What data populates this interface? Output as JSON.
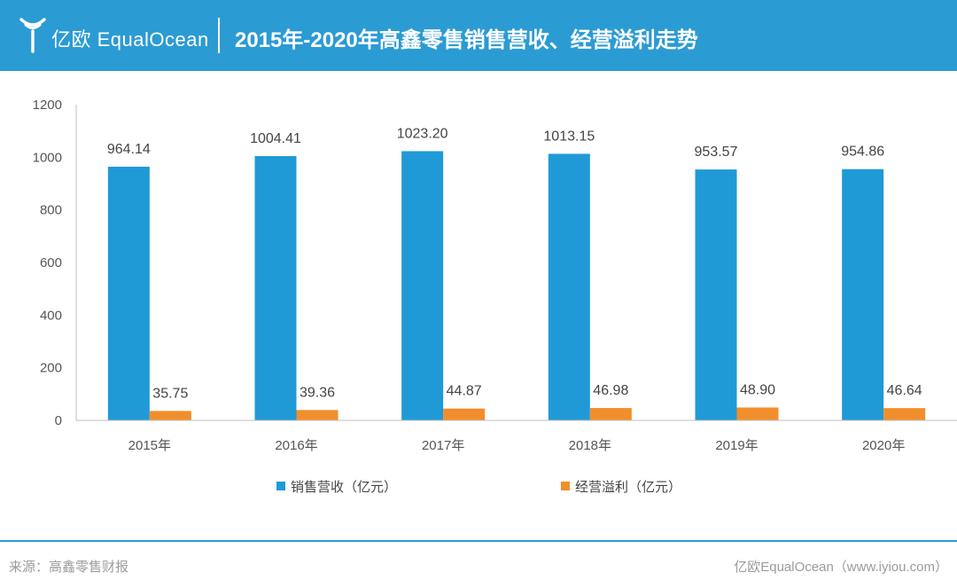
{
  "header": {
    "logo_text": "亿欧 EqualOcean",
    "title": "2015年-2020年高鑫零售销售营收、经营溢利走势",
    "logo_icon": "equalocean-logo-icon"
  },
  "colors": {
    "header_bg": "#2b9bd3",
    "series_revenue": "#1f9ad6",
    "series_profit": "#f28e2b"
  },
  "chart_data": {
    "type": "bar",
    "categories": [
      "2015年",
      "2016年",
      "2017年",
      "2018年",
      "2019年",
      "2020年"
    ],
    "series": [
      {
        "name": "销售营收（亿元）",
        "values": [
          964.14,
          1004.41,
          1023.2,
          1013.15,
          953.57,
          954.86
        ],
        "labels": [
          "964.14",
          "1004.41",
          "1023.20",
          "1013.15",
          "953.57",
          "954.86"
        ]
      },
      {
        "name": "经营溢利（亿元）",
        "values": [
          35.75,
          39.36,
          44.87,
          46.98,
          48.9,
          46.64
        ],
        "labels": [
          "35.75",
          "39.36",
          "44.87",
          "46.98",
          "48.90",
          "46.64"
        ]
      }
    ],
    "ylim": [
      0,
      1200
    ],
    "yticks": [
      0,
      200,
      400,
      600,
      800,
      1000,
      1200
    ],
    "title": "",
    "xlabel": "",
    "ylabel": "",
    "grid": false,
    "legend_position": "bottom"
  },
  "footer": {
    "source": "来源：高鑫零售财报",
    "credit": "亿欧EqualOcean（www.iyiou.com）"
  }
}
